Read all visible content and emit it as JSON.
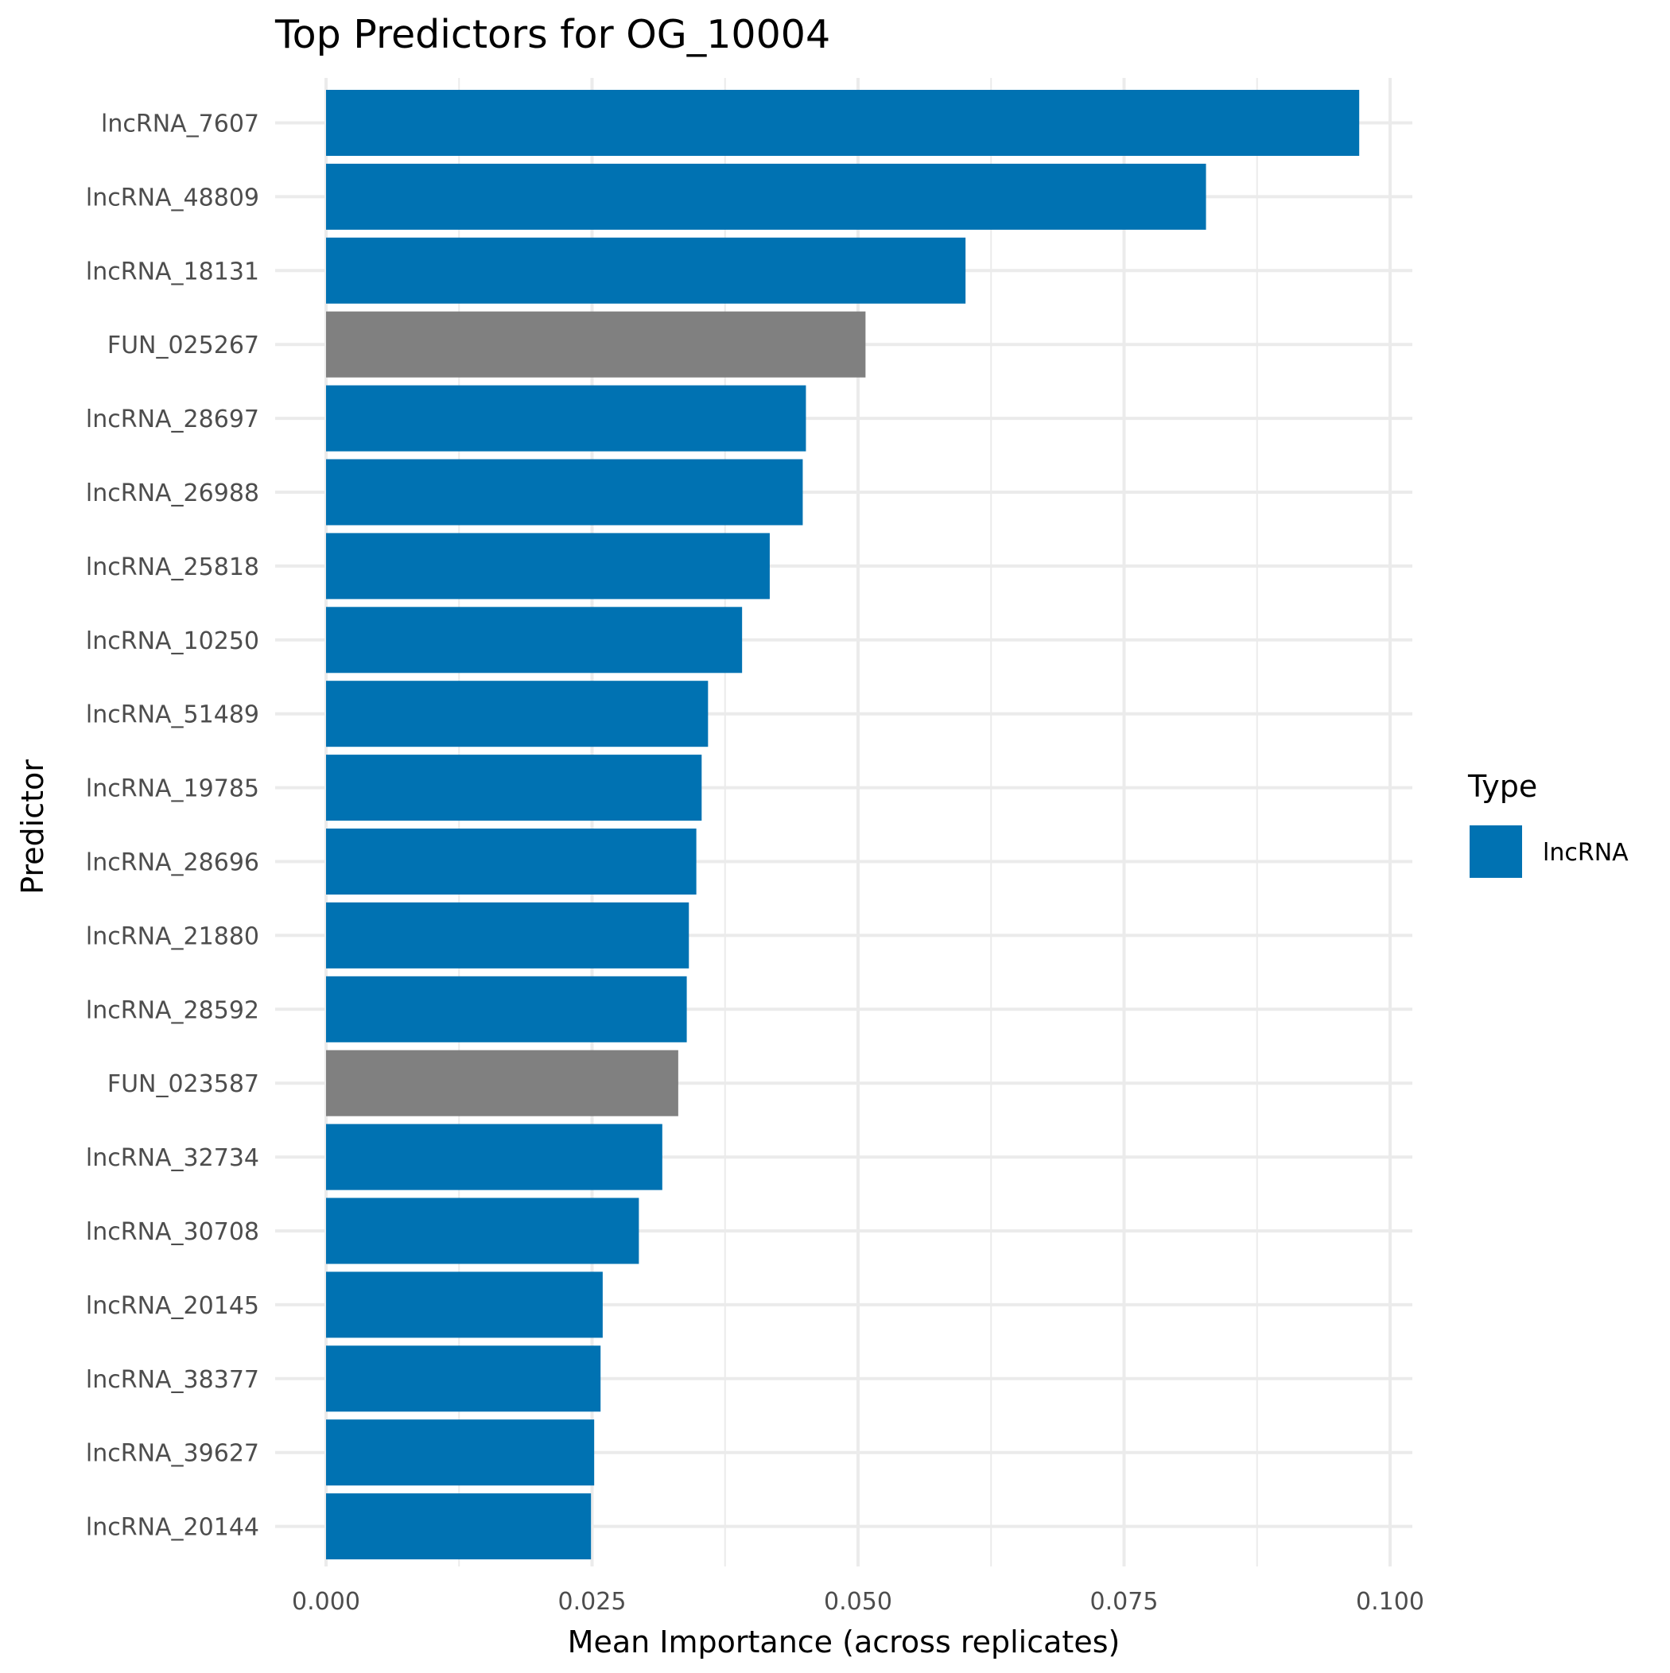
{
  "chart_data": {
    "type": "bar",
    "orientation": "horizontal",
    "title": "Top Predictors for OG_10004",
    "xlabel": "Mean Importance (across replicates)",
    "ylabel": "Predictor",
    "xlim": [
      0,
      0.1
    ],
    "x_ticks": [
      0,
      0.025,
      0.05,
      0.075,
      0.1
    ],
    "x_tick_labels": [
      "0.000",
      "0.025",
      "0.050",
      "0.075",
      "0.100"
    ],
    "grid": true,
    "legend": {
      "title": "Type",
      "position": "right",
      "entries": [
        {
          "label": "lncRNA",
          "color": "#0072B2"
        }
      ]
    },
    "type_colors": {
      "lncRNA": "#0072B2",
      "other": "#808080"
    },
    "categories": [
      "lncRNA_7607",
      "lncRNA_48809",
      "lncRNA_18131",
      "FUN_025267",
      "lncRNA_28697",
      "lncRNA_26988",
      "lncRNA_25818",
      "lncRNA_10250",
      "lncRNA_51489",
      "lncRNA_19785",
      "lncRNA_28696",
      "lncRNA_21880",
      "lncRNA_28592",
      "FUN_023587",
      "lncRNA_32734",
      "lncRNA_30708",
      "lncRNA_20145",
      "lncRNA_38377",
      "lncRNA_39627",
      "lncRNA_20144"
    ],
    "values": [
      0.0971,
      0.0827,
      0.0601,
      0.0507,
      0.0451,
      0.0448,
      0.0417,
      0.0391,
      0.0359,
      0.0353,
      0.0348,
      0.0341,
      0.0339,
      0.0331,
      0.0316,
      0.0294,
      0.026,
      0.0258,
      0.0252,
      0.0249
    ],
    "bar_types": [
      "lncRNA",
      "lncRNA",
      "lncRNA",
      "other",
      "lncRNA",
      "lncRNA",
      "lncRNA",
      "lncRNA",
      "lncRNA",
      "lncRNA",
      "lncRNA",
      "lncRNA",
      "lncRNA",
      "other",
      "lncRNA",
      "lncRNA",
      "lncRNA",
      "lncRNA",
      "lncRNA",
      "lncRNA"
    ]
  }
}
